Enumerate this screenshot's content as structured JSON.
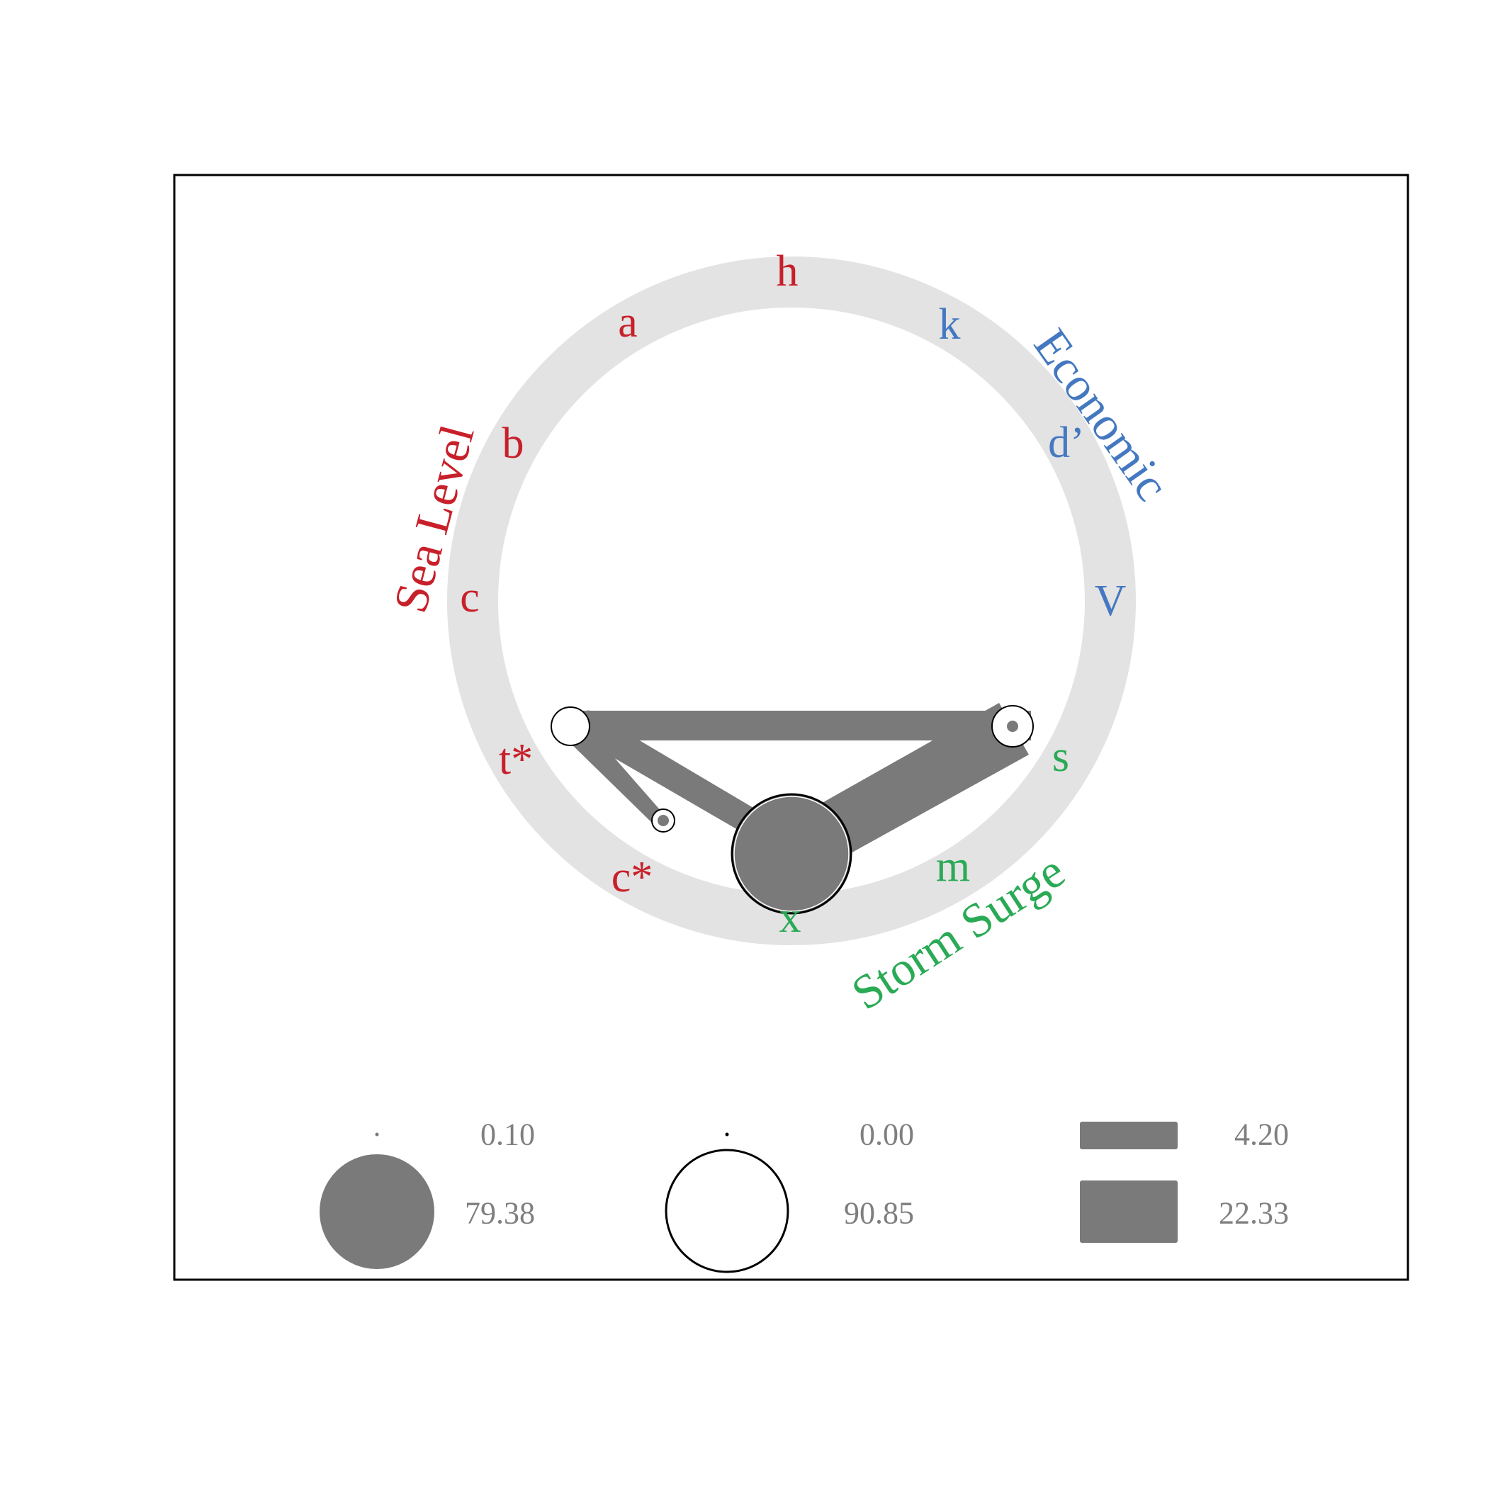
{
  "colors": {
    "sea_level": "#c8202a",
    "economic": "#4478c0",
    "storm_surge": "#2aaa55",
    "ring": "#e3e3e3",
    "edge": "#7a7a7a",
    "legend_text": "#7f7f7f"
  },
  "groups": {
    "sea_level": "Sea Level",
    "economic": "Economic",
    "storm_surge": "Storm Surge"
  },
  "nodes": [
    {
      "id": "h",
      "group": "sea_level"
    },
    {
      "id": "k",
      "group": "economic"
    },
    {
      "id": "d’",
      "group": "economic"
    },
    {
      "id": "V",
      "group": "economic"
    },
    {
      "id": "s",
      "group": "storm_surge"
    },
    {
      "id": "m",
      "group": "storm_surge"
    },
    {
      "id": "x",
      "group": "storm_surge"
    },
    {
      "id": "c*",
      "group": "sea_level"
    },
    {
      "id": "t*",
      "group": "sea_level"
    },
    {
      "id": "c",
      "group": "sea_level"
    },
    {
      "id": "b",
      "group": "sea_level"
    },
    {
      "id": "a",
      "group": "sea_level"
    }
  ],
  "legend": {
    "filled_circle": {
      "min": "0.10",
      "max": "79.38"
    },
    "open_circle": {
      "min": "0.00",
      "max": "90.85"
    },
    "edge_width": {
      "min": "4.20",
      "max": "22.33"
    }
  }
}
